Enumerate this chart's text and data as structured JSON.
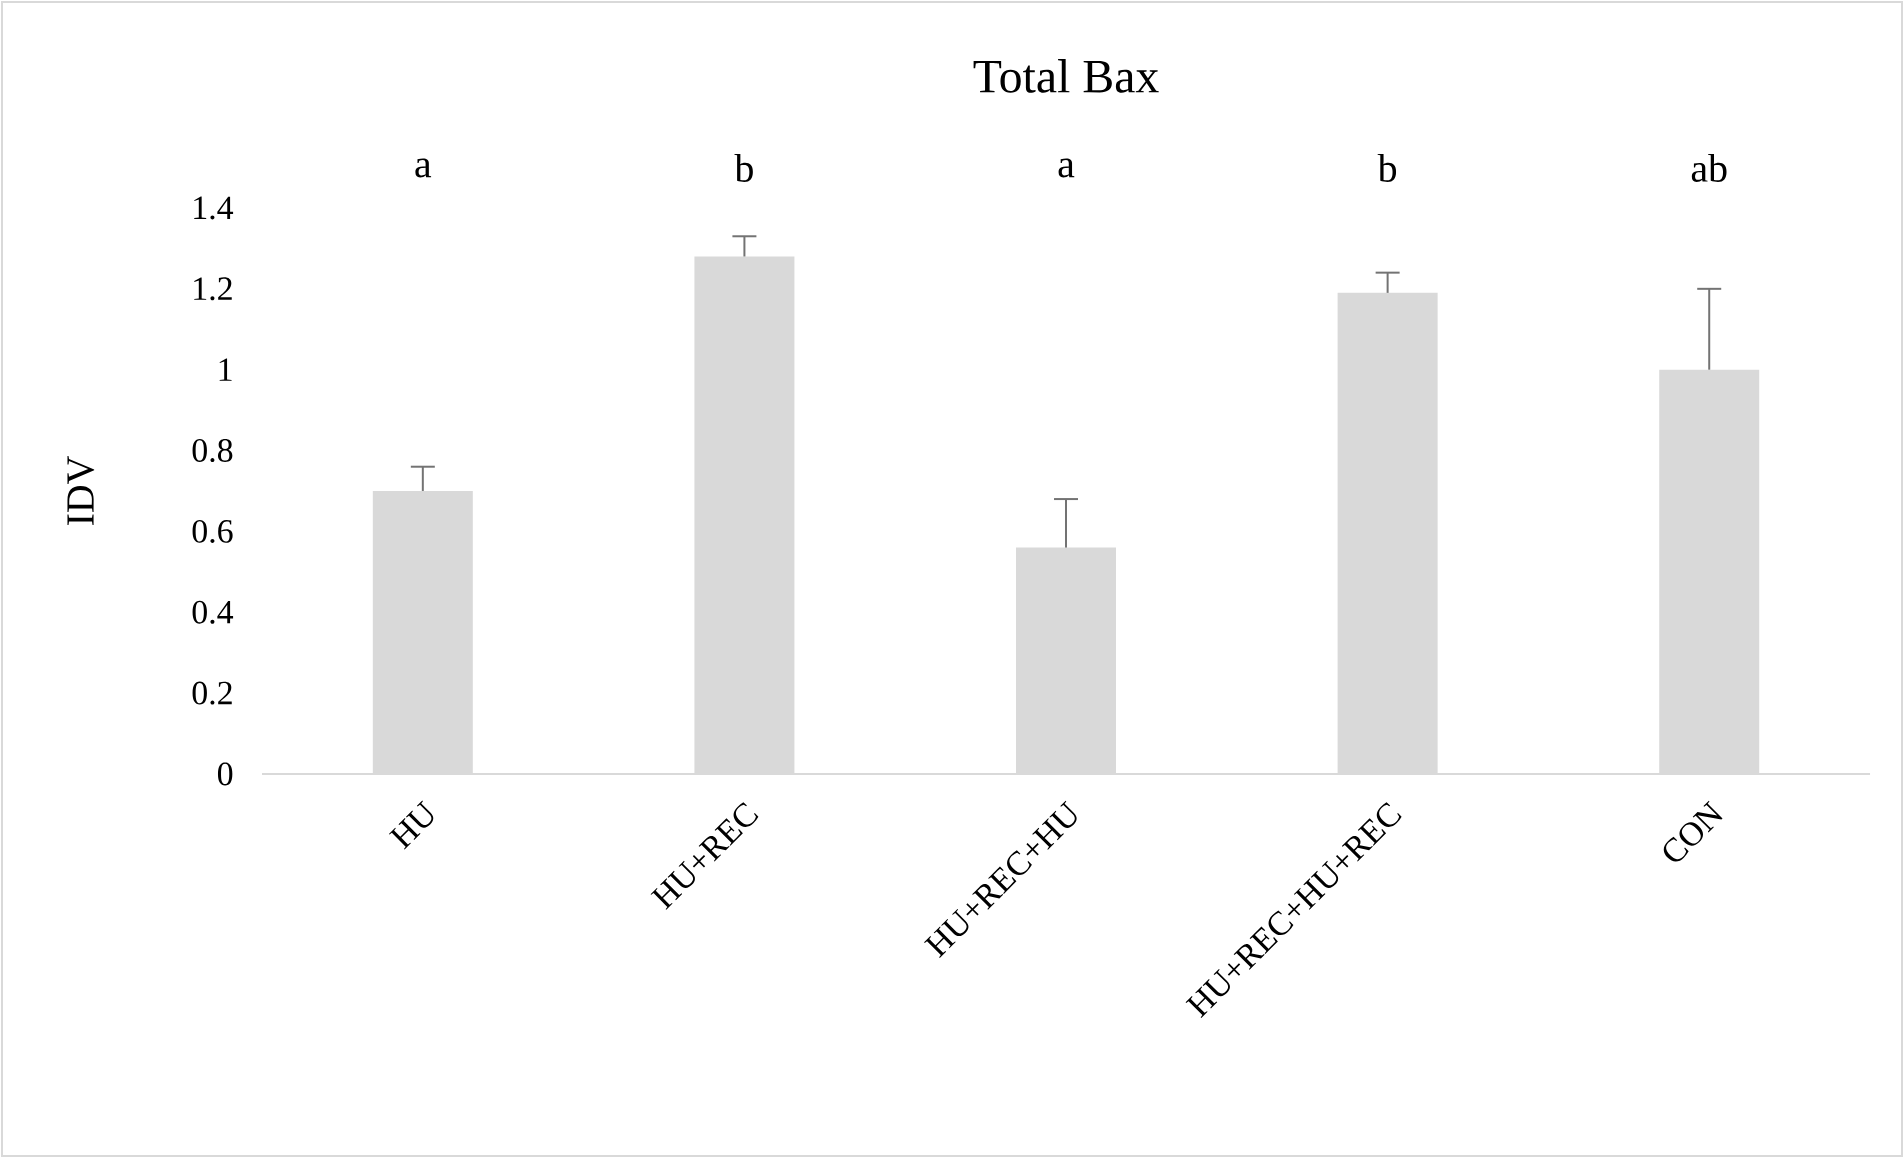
{
  "chart_data": {
    "type": "bar",
    "title": "Total Bax",
    "ylabel": "IDV",
    "categories": [
      "HU",
      "HU+REC",
      "HU+REC+HU",
      "HU+REC+HU+REC",
      "CON"
    ],
    "values": [
      0.7,
      1.28,
      0.56,
      1.19,
      1.0
    ],
    "errors": [
      [
        0.7,
        0.76
      ],
      [
        1.28,
        1.33
      ],
      [
        0.56,
        0.68
      ],
      [
        1.19,
        1.24
      ],
      [
        1.0,
        1.2
      ]
    ],
    "color": "#d9d9d9",
    "ylim": [
      0,
      1.4
    ],
    "yticks": [
      0,
      0.2,
      0.4,
      0.6,
      0.8,
      1,
      1.2,
      1.4
    ],
    "annotations": [
      "a",
      "b",
      "a",
      "b",
      "ab"
    ]
  }
}
